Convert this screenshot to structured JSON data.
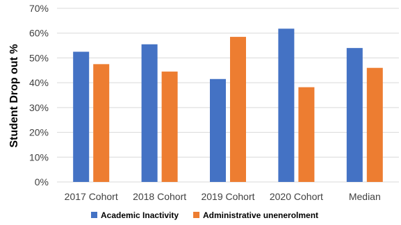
{
  "chart_data": {
    "type": "bar",
    "title": "",
    "xlabel": "",
    "ylabel": "Student Drop out %",
    "categories": [
      "2017 Cohort",
      "2018 Cohort",
      "2019 Cohort",
      "2020 Cohort",
      "Median"
    ],
    "series": [
      {
        "name": "Academic Inactivity",
        "color": "#4472C4",
        "values": [
          52.5,
          55.5,
          41.5,
          61.8,
          54.0
        ]
      },
      {
        "name": "Administrative unenerolment",
        "color": "#ED7D31",
        "values": [
          47.5,
          44.5,
          58.5,
          38.2,
          46.0
        ]
      }
    ],
    "ylim": [
      0,
      70
    ],
    "yticks": [
      "0%",
      "10%",
      "20%",
      "30%",
      "40%",
      "50%",
      "60%",
      "70%"
    ],
    "grid": true,
    "legend_position": "bottom"
  }
}
